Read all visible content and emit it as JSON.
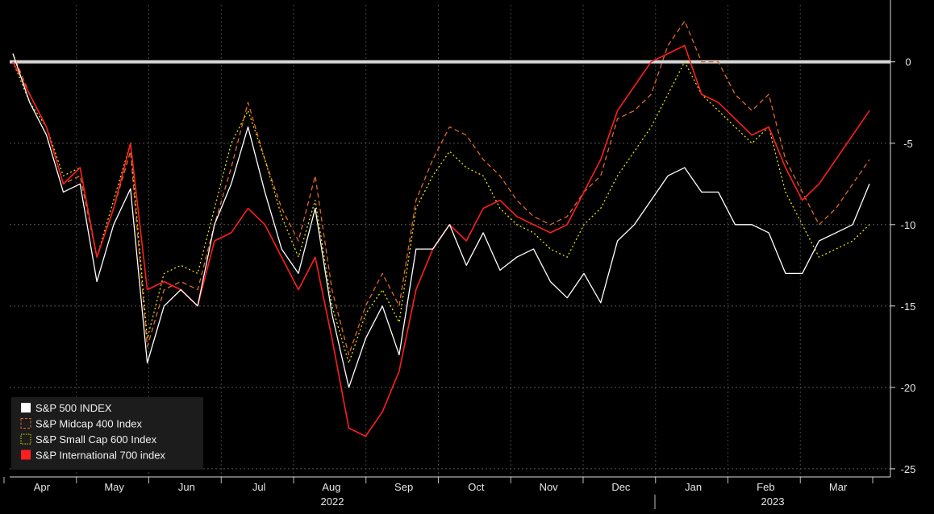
{
  "chart_data": {
    "type": "line",
    "title": "",
    "xlabel": "",
    "ylabel": "",
    "ylim": [
      -25.5,
      3.5
    ],
    "y_ticks": [
      0,
      -5,
      -10,
      -15,
      -20,
      -25
    ],
    "x_month_labels": [
      "Apr",
      "May",
      "Jun",
      "Jul",
      "Aug",
      "Sep",
      "Oct",
      "Nov",
      "Dec",
      "Jan",
      "Feb",
      "Mar"
    ],
    "x_year_labels": [
      "2022",
      "2023"
    ],
    "x_index_range": [
      0,
      51
    ],
    "legend_position": "bottom-left",
    "grid": true,
    "zero_line": true,
    "series": [
      {
        "name": "S&P 500 INDEX",
        "color": "#ffffff",
        "dash": "solid",
        "legend_marker": "filled",
        "values": [
          0.5,
          -2.5,
          -4.5,
          -8,
          -7.5,
          -13.5,
          -10,
          -7.8,
          -18.5,
          -15,
          -14,
          -15,
          -10,
          -7.5,
          -4,
          -8,
          -11.5,
          -13,
          -9,
          -15.5,
          -20,
          -17,
          -15,
          -18,
          -11.5,
          -11.5,
          -10,
          -12.5,
          -10.5,
          -12.8,
          -12,
          -11.5,
          -13.5,
          -14.5,
          -13,
          -14.8,
          -11,
          -10,
          -8.5,
          -7,
          -6.5,
          -8,
          -8,
          -10,
          -10,
          -10.5,
          -13,
          -13,
          -11,
          -10.5,
          -10,
          -7.5
        ]
      },
      {
        "name": "S&P Midcap 400 Index",
        "color": "#e06828",
        "dash": "6,4",
        "legend_marker": "dashed-box",
        "values": [
          0.5,
          -2,
          -4,
          -7.5,
          -7,
          -12,
          -9,
          -5.5,
          -17.5,
          -14,
          -13.5,
          -14,
          -10,
          -6.5,
          -2.5,
          -6,
          -9,
          -11,
          -7,
          -14,
          -18,
          -15,
          -13,
          -15,
          -8.5,
          -6,
          -4,
          -4.5,
          -6,
          -7,
          -8.5,
          -9.5,
          -10,
          -9.5,
          -8,
          -7,
          -3.5,
          -3,
          -2,
          1,
          2.5,
          0,
          0,
          -2,
          -3,
          -2,
          -6,
          -8,
          -10,
          -9,
          -7.5,
          -6
        ]
      },
      {
        "name": "S&P Small Cap 600 Index",
        "color": "#e8e000",
        "dash": "2,3",
        "legend_marker": "dotted-box",
        "values": [
          0,
          -2.5,
          -4,
          -7,
          -6.5,
          -12,
          -8.5,
          -5,
          -17,
          -13,
          -12.5,
          -13,
          -9,
          -5,
          -3,
          -6,
          -9.5,
          -12,
          -8.5,
          -15,
          -18.5,
          -15.5,
          -14,
          -16,
          -9,
          -7,
          -5.5,
          -6.5,
          -7,
          -9,
          -10,
          -10.5,
          -11.5,
          -12,
          -10,
          -9,
          -7,
          -5.5,
          -4,
          -2,
          0,
          -2,
          -3,
          -4,
          -5,
          -4,
          -8,
          -10,
          -12,
          -11.5,
          -11,
          -10
        ]
      },
      {
        "name": "S&P International 700 index",
        "color": "#ff1e1e",
        "dash": "solid",
        "legend_marker": "filled",
        "values": [
          0,
          -2,
          -4,
          -7.5,
          -6.5,
          -12,
          -9,
          -5,
          -14,
          -13.5,
          -14,
          -15,
          -11,
          -10.5,
          -9,
          -10,
          -12,
          -14,
          -12,
          -17,
          -22.5,
          -23,
          -21.5,
          -19,
          -14,
          -11.5,
          -10,
          -11,
          -9,
          -8.5,
          -9.5,
          -10,
          -10.5,
          -10,
          -8,
          -6,
          -3,
          -1.5,
          0,
          0.5,
          1,
          -2,
          -2.5,
          -3.5,
          -4.5,
          -4,
          -6.5,
          -8.5,
          -7.5,
          -6,
          -4.5,
          -3
        ]
      }
    ]
  }
}
